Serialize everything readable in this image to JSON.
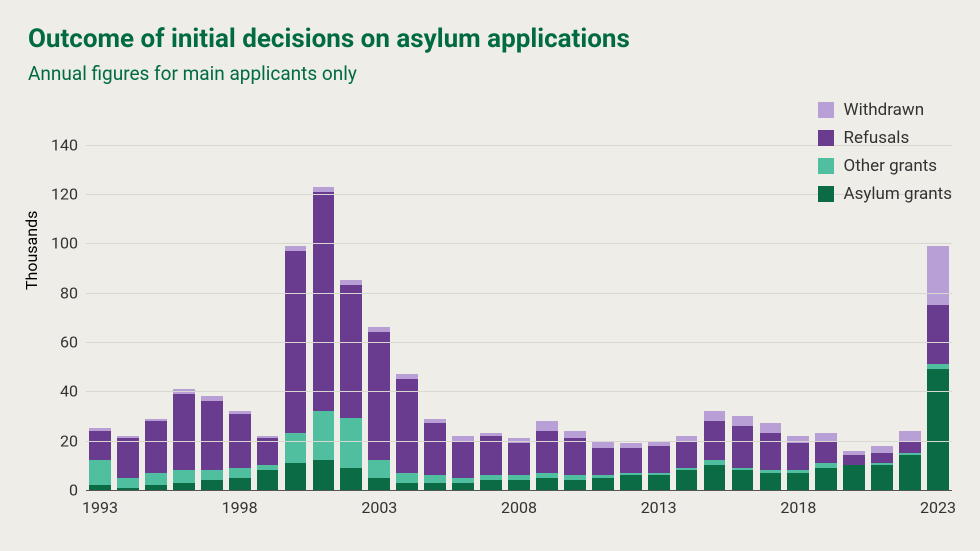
{
  "title": "Outcome of initial decisions on asylum applications",
  "title_color": "#006b3f",
  "title_fontsize": 26,
  "subtitle": "Annual figures for main applicants only",
  "subtitle_color": "#006b3f",
  "subtitle_fontsize": 19,
  "background_color": "#eeede8",
  "chart": {
    "type": "stacked-bar",
    "y_axis": {
      "label": "Thousands",
      "label_fontsize": 16,
      "ylim": [
        0,
        150
      ],
      "tick_step": 20,
      "tick_fontsize": 16,
      "tick_color": "#333333",
      "grid_color": "#d8d7d2",
      "baseline_color": "#555555"
    },
    "x_axis": {
      "tick_years": [
        1993,
        1998,
        2003,
        2008,
        2013,
        2018,
        2023
      ],
      "tick_fontsize": 16,
      "tick_color": "#333333"
    },
    "bar_width_ratio": 0.78,
    "series": [
      {
        "key": "asylum_grants",
        "label": "Asylum grants",
        "color": "#0b6b44"
      },
      {
        "key": "other_grants",
        "label": "Other grants",
        "color": "#4fbfa0"
      },
      {
        "key": "refusals",
        "label": "Refusals",
        "color": "#6a3c8f"
      },
      {
        "key": "withdrawn",
        "label": "Withdrawn",
        "color": "#b89fd6"
      }
    ],
    "legend": {
      "order": [
        "withdrawn",
        "refusals",
        "other_grants",
        "asylum_grants"
      ],
      "fontsize": 17,
      "text_color": "#333333",
      "swatch_size": 16
    },
    "years": [
      1993,
      1994,
      1995,
      1996,
      1997,
      1998,
      1999,
      2000,
      2001,
      2002,
      2003,
      2004,
      2005,
      2006,
      2007,
      2008,
      2009,
      2010,
      2011,
      2012,
      2013,
      2014,
      2015,
      2016,
      2017,
      2018,
      2019,
      2020,
      2021,
      2022,
      2023
    ],
    "data": [
      {
        "year": 1993,
        "asylum_grants": 2,
        "other_grants": 10,
        "refusals": 12,
        "withdrawn": 1
      },
      {
        "year": 1994,
        "asylum_grants": 1,
        "other_grants": 4,
        "refusals": 16,
        "withdrawn": 1
      },
      {
        "year": 1995,
        "asylum_grants": 2,
        "other_grants": 5,
        "refusals": 21,
        "withdrawn": 1
      },
      {
        "year": 1996,
        "asylum_grants": 3,
        "other_grants": 5,
        "refusals": 31,
        "withdrawn": 2
      },
      {
        "year": 1997,
        "asylum_grants": 4,
        "other_grants": 4,
        "refusals": 28,
        "withdrawn": 2
      },
      {
        "year": 1998,
        "asylum_grants": 5,
        "other_grants": 4,
        "refusals": 22,
        "withdrawn": 1
      },
      {
        "year": 1999,
        "asylum_grants": 8,
        "other_grants": 2,
        "refusals": 11,
        "withdrawn": 1
      },
      {
        "year": 2000,
        "asylum_grants": 11,
        "other_grants": 12,
        "refusals": 74,
        "withdrawn": 2
      },
      {
        "year": 2001,
        "asylum_grants": 12,
        "other_grants": 20,
        "refusals": 89,
        "withdrawn": 2
      },
      {
        "year": 2002,
        "asylum_grants": 9,
        "other_grants": 20,
        "refusals": 54,
        "withdrawn": 2
      },
      {
        "year": 2003,
        "asylum_grants": 5,
        "other_grants": 7,
        "refusals": 52,
        "withdrawn": 2
      },
      {
        "year": 2004,
        "asylum_grants": 3,
        "other_grants": 4,
        "refusals": 38,
        "withdrawn": 2
      },
      {
        "year": 2005,
        "asylum_grants": 3,
        "other_grants": 3,
        "refusals": 21,
        "withdrawn": 2
      },
      {
        "year": 2006,
        "asylum_grants": 3,
        "other_grants": 2,
        "refusals": 15,
        "withdrawn": 2
      },
      {
        "year": 2007,
        "asylum_grants": 4,
        "other_grants": 2,
        "refusals": 16,
        "withdrawn": 1
      },
      {
        "year": 2008,
        "asylum_grants": 4,
        "other_grants": 2,
        "refusals": 13,
        "withdrawn": 2
      },
      {
        "year": 2009,
        "asylum_grants": 5,
        "other_grants": 2,
        "refusals": 17,
        "withdrawn": 4
      },
      {
        "year": 2010,
        "asylum_grants": 4,
        "other_grants": 2,
        "refusals": 15,
        "withdrawn": 3
      },
      {
        "year": 2011,
        "asylum_grants": 5,
        "other_grants": 1,
        "refusals": 11,
        "withdrawn": 3
      },
      {
        "year": 2012,
        "asylum_grants": 6,
        "other_grants": 1,
        "refusals": 10,
        "withdrawn": 2
      },
      {
        "year": 2013,
        "asylum_grants": 6,
        "other_grants": 1,
        "refusals": 11,
        "withdrawn": 2
      },
      {
        "year": 2014,
        "asylum_grants": 8,
        "other_grants": 1,
        "refusals": 11,
        "withdrawn": 2
      },
      {
        "year": 2015,
        "asylum_grants": 10,
        "other_grants": 2,
        "refusals": 16,
        "withdrawn": 4
      },
      {
        "year": 2016,
        "asylum_grants": 8,
        "other_grants": 1,
        "refusals": 17,
        "withdrawn": 4
      },
      {
        "year": 2017,
        "asylum_grants": 7,
        "other_grants": 1,
        "refusals": 15,
        "withdrawn": 4
      },
      {
        "year": 2018,
        "asylum_grants": 7,
        "other_grants": 1,
        "refusals": 11,
        "withdrawn": 3
      },
      {
        "year": 2019,
        "asylum_grants": 9,
        "other_grants": 2,
        "refusals": 9,
        "withdrawn": 3
      },
      {
        "year": 2020,
        "asylum_grants": 10,
        "other_grants": 0,
        "refusals": 4,
        "withdrawn": 2
      },
      {
        "year": 2021,
        "asylum_grants": 10,
        "other_grants": 1,
        "refusals": 4,
        "withdrawn": 3
      },
      {
        "year": 2022,
        "asylum_grants": 14,
        "other_grants": 1,
        "refusals": 5,
        "withdrawn": 4
      },
      {
        "year": 2023,
        "asylum_grants": 49,
        "other_grants": 2,
        "refusals": 24,
        "withdrawn": 24
      }
    ]
  }
}
